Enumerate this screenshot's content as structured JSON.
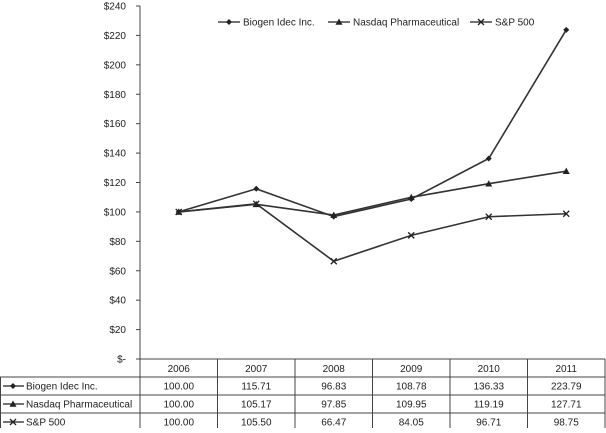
{
  "chart_data": {
    "type": "line",
    "title": "",
    "xlabel": "",
    "ylabel": "",
    "categories": [
      "2006",
      "2007",
      "2008",
      "2009",
      "2010",
      "2011"
    ],
    "yticks": [
      "$-",
      "$20",
      "$40",
      "$60",
      "$80",
      "$100",
      "$120",
      "$140",
      "$160",
      "$180",
      "$200",
      "$220",
      "$240"
    ],
    "ylim": [
      0,
      240
    ],
    "grid": false,
    "legend_position": "top",
    "series": [
      {
        "name": "Biogen Idec Inc.",
        "marker": "diamond",
        "color": "#333333",
        "values": [
          100.0,
          115.71,
          96.83,
          108.78,
          136.33,
          223.79
        ],
        "labels": [
          "100.00",
          "115.71",
          "96.83",
          "108.78",
          "136.33",
          "223.79"
        ]
      },
      {
        "name": "Nasdaq Pharmaceutical",
        "marker": "triangle",
        "color": "#333333",
        "values": [
          100.0,
          105.17,
          97.85,
          109.95,
          119.19,
          127.71
        ],
        "labels": [
          "100.00",
          "105.17",
          "97.85",
          "109.95",
          "119.19",
          "127.71"
        ]
      },
      {
        "name": "S&P 500",
        "marker": "x",
        "color": "#333333",
        "values": [
          100.0,
          105.5,
          66.47,
          84.05,
          96.71,
          98.75
        ],
        "labels": [
          "100.00",
          "105.50",
          "66.47",
          "84.05",
          "96.71",
          "98.75"
        ]
      }
    ]
  }
}
